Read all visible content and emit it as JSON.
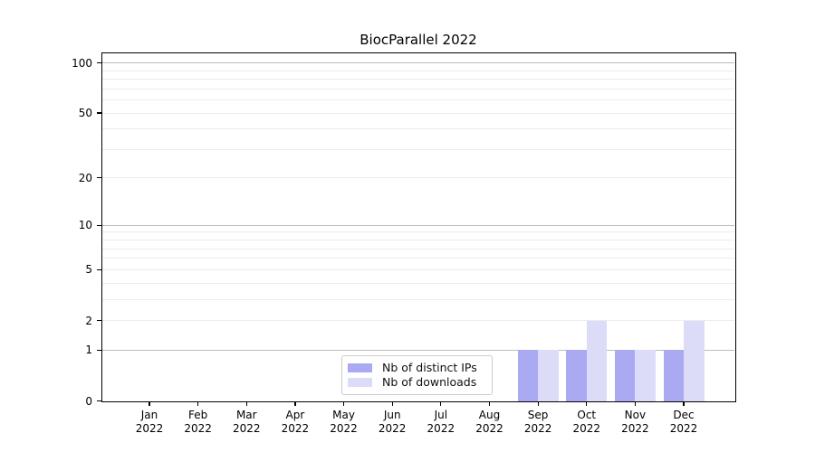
{
  "chart_data": {
    "type": "bar",
    "title": "BiocParallel 2022",
    "categories": [
      "Jan",
      "Feb",
      "Mar",
      "Apr",
      "May",
      "Jun",
      "Jul",
      "Aug",
      "Sep",
      "Oct",
      "Nov",
      "Dec"
    ],
    "x_sublabel": "2022",
    "series": [
      {
        "name": "Nb of distinct IPs",
        "color": "#aaaaf2",
        "values": [
          0,
          0,
          0,
          0,
          0,
          0,
          0,
          0,
          1,
          1,
          1,
          1
        ]
      },
      {
        "name": "Nb of downloads",
        "color": "#dcdcf8",
        "values": [
          0,
          0,
          0,
          0,
          0,
          0,
          0,
          0,
          1,
          2,
          1,
          2
        ]
      }
    ],
    "y_ticks": [
      0,
      1,
      2,
      5,
      10,
      20,
      50,
      100
    ],
    "y_scale": "log1p",
    "ylim": [
      0,
      113
    ],
    "grid": "horizontal",
    "grid_emphasized_values": [
      1,
      10,
      100
    ],
    "grid_major_color": "#bcbcbc",
    "grid_minor_color": "#ececec",
    "legend_position": "inside-bottom-center",
    "xlabel": "",
    "ylabel": ""
  }
}
